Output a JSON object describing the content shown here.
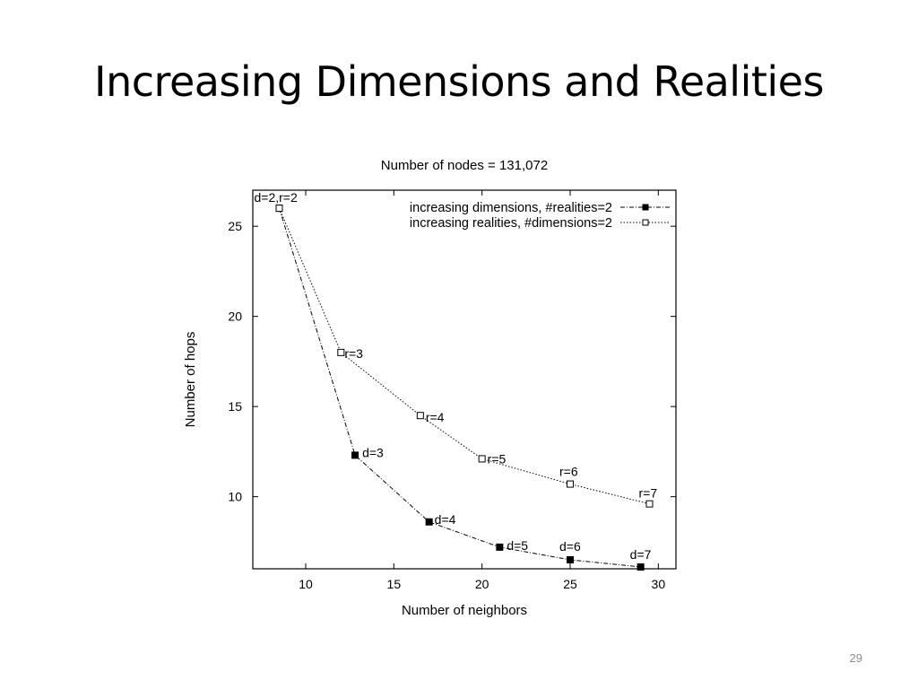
{
  "slide": {
    "title": "Increasing Dimensions and Realities",
    "page_number": "29"
  },
  "chart_data": {
    "type": "line",
    "title": "Number of nodes = 131,072",
    "xlabel": "Number of neighbors",
    "ylabel": "Number of hops",
    "xlim": [
      7,
      31
    ],
    "ylim": [
      6,
      27
    ],
    "xticks": [
      10,
      15,
      20,
      25,
      30
    ],
    "yticks": [
      10,
      15,
      20,
      25
    ],
    "grid": false,
    "legend_position": "top-right",
    "series": [
      {
        "name": "increasing dimensions, #realities=2",
        "marker": "filled-square",
        "x": [
          8.5,
          12.8,
          17,
          21,
          25,
          29
        ],
        "y": [
          26,
          12.3,
          8.6,
          7.2,
          6.5,
          6.1
        ],
        "point_labels": [
          "d=2,r=2",
          "d=3",
          "d=4",
          "d=5",
          "d=6",
          "d=7"
        ]
      },
      {
        "name": "increasing realities, #dimensions=2",
        "marker": "open-square",
        "x": [
          8.5,
          12,
          16.5,
          20,
          25,
          29.5
        ],
        "y": [
          26,
          18,
          14.5,
          12.1,
          10.7,
          9.6
        ],
        "point_labels": [
          "",
          "r=3",
          "r=4",
          "r=5",
          "r=6",
          "r=7"
        ]
      }
    ]
  }
}
